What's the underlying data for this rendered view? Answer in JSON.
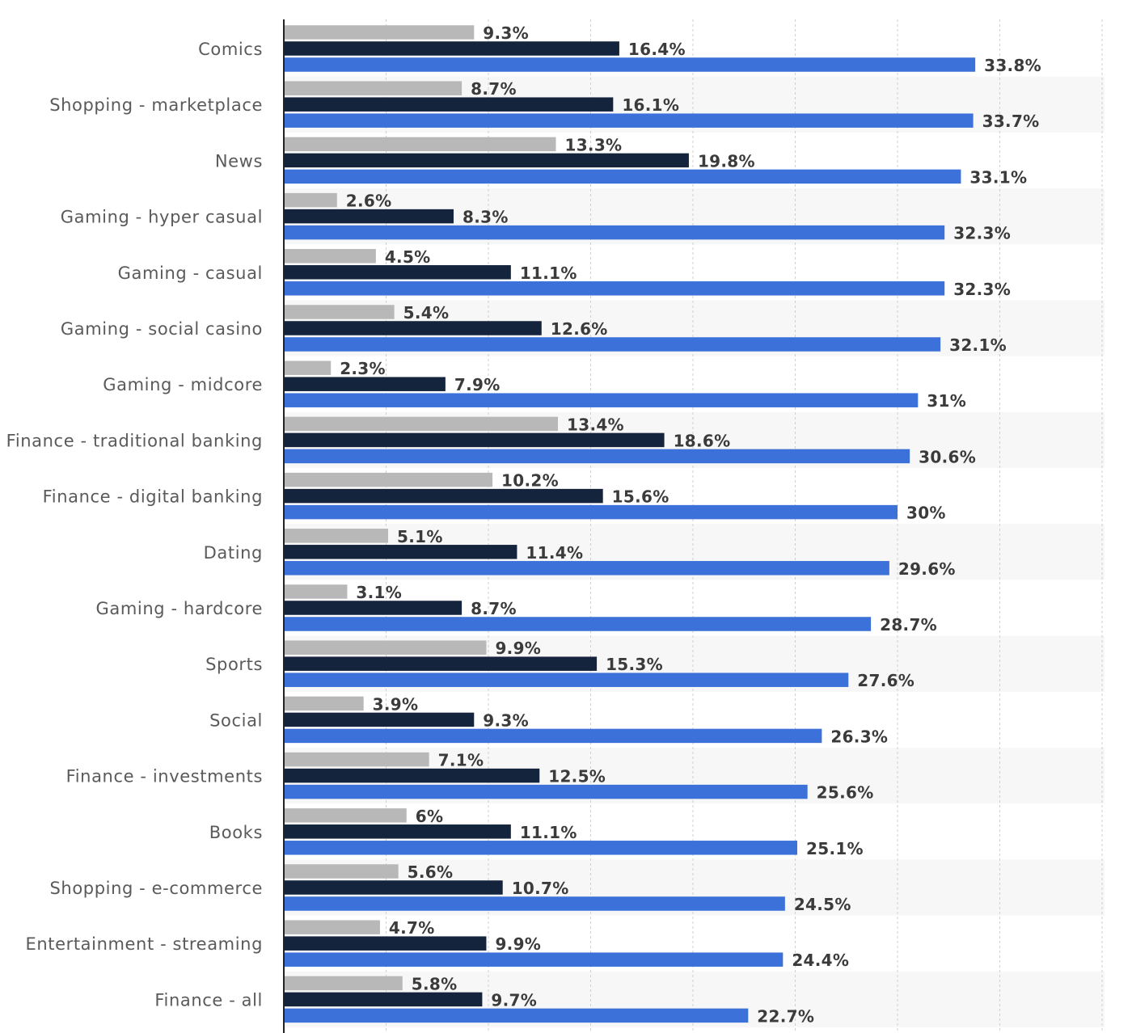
{
  "chart_data": {
    "type": "bar",
    "orientation": "horizontal",
    "categories": [
      "Comics",
      "Shopping - marketplace",
      "News",
      "Gaming - hyper casual",
      "Gaming - casual",
      "Gaming - social casino",
      "Gaming - midcore",
      "Finance - traditional banking",
      "Finance - digital banking",
      "Dating",
      "Gaming - hardcore",
      "Sports",
      "Social",
      "Finance - investments",
      "Books",
      "Shopping - e-commerce",
      "Entertainment - streaming",
      "Finance - all"
    ],
    "series": [
      {
        "color": "#b8b8b8",
        "values": [
          9.3,
          8.7,
          13.3,
          2.6,
          4.5,
          5.4,
          2.3,
          13.4,
          10.2,
          5.1,
          3.1,
          9.9,
          3.9,
          7.1,
          6,
          5.6,
          4.7,
          5.8
        ],
        "labels": [
          "9.3%",
          "8.7%",
          "13.3%",
          "2.6%",
          "4.5%",
          "5.4%",
          "2.3%",
          "13.4%",
          "10.2%",
          "5.1%",
          "3.1%",
          "9.9%",
          "3.9%",
          "7.1%",
          "6%",
          "5.6%",
          "4.7%",
          "5.8%"
        ]
      },
      {
        "color": "#14243d",
        "values": [
          16.4,
          16.1,
          19.8,
          8.3,
          11.1,
          12.6,
          7.9,
          18.6,
          15.6,
          11.4,
          8.7,
          15.3,
          9.3,
          12.5,
          11.1,
          10.7,
          9.9,
          9.7
        ],
        "labels": [
          "16.4%",
          "16.1%",
          "19.8%",
          "8.3%",
          "11.1%",
          "12.6%",
          "7.9%",
          "18.6%",
          "15.6%",
          "11.4%",
          "8.7%",
          "15.3%",
          "9.3%",
          "12.5%",
          "11.1%",
          "10.7%",
          "9.9%",
          "9.7%"
        ]
      },
      {
        "color": "#3b71d9",
        "values": [
          33.8,
          33.7,
          33.1,
          32.3,
          32.3,
          32.1,
          31,
          30.6,
          30,
          29.6,
          28.7,
          27.6,
          26.3,
          25.6,
          25.1,
          24.5,
          24.4,
          22.7
        ],
        "labels": [
          "33.8%",
          "33.7%",
          "33.1%",
          "32.3%",
          "32.3%",
          "32.1%",
          "31%",
          "30.6%",
          "30%",
          "29.6%",
          "28.7%",
          "27.6%",
          "26.3%",
          "25.6%",
          "25.1%",
          "24.5%",
          "24.4%",
          "22.7%"
        ]
      }
    ],
    "xlim": [
      0,
      40
    ],
    "grid": true,
    "legend": "none",
    "alternating_row_shading": true
  }
}
